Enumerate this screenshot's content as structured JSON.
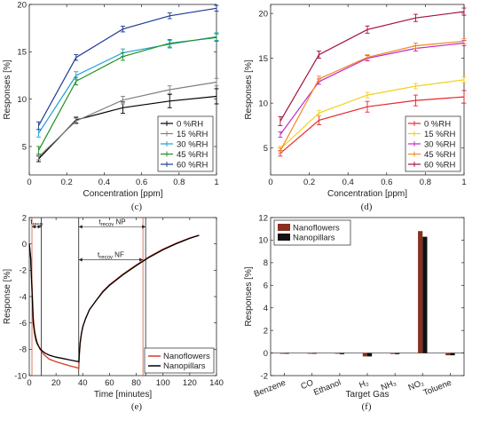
{
  "chart_data": [
    {
      "id": "c",
      "panel_label": "(c)",
      "type": "line",
      "error_bars": true,
      "xlabel": "Concentration [ppm]",
      "ylabel": "Responses [%]",
      "xlim": [
        0,
        1
      ],
      "ylim": [
        2,
        20
      ],
      "xticks": [
        0,
        0.2,
        0.4,
        0.6,
        0.8,
        1
      ],
      "xtick_labels": [
        "0",
        "0.2",
        "0.4",
        "0.6",
        "0.8",
        "1"
      ],
      "yticks": [
        5,
        10,
        15,
        20
      ],
      "ytick_labels": [
        "5",
        "10",
        "15",
        "20"
      ],
      "grid": false,
      "legend_position": "bottom-right",
      "x": [
        0.05,
        0.25,
        0.5,
        0.75,
        1
      ],
      "series": [
        {
          "name": "0 %RH",
          "color": "#000000",
          "values": [
            3.7,
            7.8,
            9.1,
            9.8,
            10.3
          ],
          "err": [
            0.3,
            0.3,
            0.6,
            0.7,
            0.8
          ]
        },
        {
          "name": "15 %RH",
          "color": "#808080",
          "values": [
            3.9,
            7.7,
            9.9,
            11.0,
            11.8
          ],
          "err": [
            0.3,
            0.3,
            0.4,
            0.4,
            0.4
          ]
        },
        {
          "name": "30 %RH",
          "color": "#1f9fd6",
          "values": [
            6.4,
            12.5,
            14.9,
            15.8,
            16.6
          ],
          "err": [
            0.4,
            0.4,
            0.4,
            0.4,
            0.4
          ]
        },
        {
          "name": "45 %RH",
          "color": "#1f8f1f",
          "values": [
            4.6,
            11.9,
            14.5,
            15.9,
            16.5
          ],
          "err": [
            0.4,
            0.4,
            0.4,
            0.4,
            0.4
          ]
        },
        {
          "name": "60 %RH",
          "color": "#1f3a93",
          "values": [
            7.2,
            14.4,
            17.4,
            18.8,
            19.6
          ],
          "err": [
            0.4,
            0.3,
            0.3,
            0.3,
            0.3
          ]
        }
      ]
    },
    {
      "id": "d",
      "panel_label": "(d)",
      "type": "line",
      "error_bars": true,
      "xlabel": "Concentration [ppm]",
      "ylabel": "Responses [%]",
      "xlim": [
        0,
        1
      ],
      "ylim": [
        2,
        21
      ],
      "xticks": [
        0,
        0.2,
        0.4,
        0.6,
        0.8,
        1
      ],
      "xtick_labels": [
        "0",
        "0.2",
        "0.4",
        "0.6",
        "0.8",
        "1"
      ],
      "yticks": [
        5,
        10,
        15,
        20
      ],
      "ytick_labels": [
        "5",
        "10",
        "15",
        "20"
      ],
      "grid": false,
      "legend_position": "bottom-right",
      "x": [
        0.05,
        0.25,
        0.5,
        0.75,
        1
      ],
      "series": [
        {
          "name": "0 %RH",
          "color": "#e8262c",
          "values": [
            4.4,
            8.1,
            9.6,
            10.3,
            10.7
          ],
          "err": [
            0.3,
            0.5,
            0.6,
            0.6,
            0.7
          ]
        },
        {
          "name": "15 %RH",
          "color": "#f2d11c",
          "values": [
            4.9,
            8.9,
            10.9,
            11.9,
            12.6
          ],
          "err": [
            0.3,
            0.3,
            0.3,
            0.3,
            0.3
          ]
        },
        {
          "name": "30 %RH",
          "color": "#c22bc9",
          "values": [
            6.5,
            12.4,
            15.0,
            16.1,
            16.7
          ],
          "err": [
            0.3,
            0.3,
            0.3,
            0.3,
            0.3
          ]
        },
        {
          "name": "45 %RH",
          "color": "#f08a24",
          "values": [
            4.7,
            12.7,
            15.1,
            16.4,
            16.9
          ],
          "err": [
            0.3,
            0.3,
            0.3,
            0.3,
            0.3
          ]
        },
        {
          "name": "60 %RH",
          "color": "#a1123a",
          "values": [
            8.0,
            15.4,
            18.2,
            19.5,
            20.2
          ],
          "err": [
            0.5,
            0.4,
            0.4,
            0.4,
            0.4
          ]
        }
      ]
    },
    {
      "id": "e",
      "panel_label": "(e)",
      "type": "line",
      "xlabel": "Time [minutes]",
      "ylabel": "Response [%]",
      "xlim": [
        0,
        140
      ],
      "ylim": [
        -10,
        2
      ],
      "xticks": [
        0,
        20,
        40,
        60,
        80,
        100,
        120,
        140
      ],
      "xtick_labels": [
        "0",
        "20",
        "40",
        "60",
        "80",
        "100",
        "120",
        "140"
      ],
      "yticks": [
        -10,
        -8,
        -6,
        -4,
        -2,
        0,
        2
      ],
      "ytick_labels": [
        "-10",
        "-8",
        "-6",
        "-4",
        "-2",
        "0",
        "2"
      ],
      "grid": false,
      "legend_position": "bottom-right",
      "annotations": [
        {
          "kind": "span",
          "label_main": "t",
          "label_sub": "resp",
          "x1": 2,
          "x2": 9,
          "y": 1.3
        },
        {
          "kind": "span",
          "label_main": "t",
          "label_sub": "recov",
          "label_suffix": " NP",
          "x1": 37,
          "x2": 87,
          "y": 1.3
        },
        {
          "kind": "span",
          "label_main": "t",
          "label_sub": "recov",
          "label_suffix": " NF",
          "x1": 37,
          "x2": 85,
          "y": -1.2
        }
      ],
      "vlines": [
        {
          "x": 2,
          "color": "#d23c28"
        },
        {
          "x": 9,
          "color": "#000000"
        },
        {
          "x": 37,
          "color": "#000000"
        },
        {
          "x": 85,
          "color": "#d23c28"
        },
        {
          "x": 87,
          "color": "#000000"
        }
      ],
      "series": [
        {
          "name": "Nanoflowers",
          "color": "#d23c28",
          "x": [
            0,
            1,
            2,
            3,
            4,
            5,
            6,
            8,
            10,
            12,
            15,
            20,
            25,
            30,
            35,
            37,
            37.5,
            38,
            39,
            40,
            42,
            45,
            50,
            55,
            60,
            70,
            80,
            90,
            100,
            110,
            120,
            127
          ],
          "y": [
            0,
            -1.0,
            -3.0,
            -5.6,
            -6.6,
            -7.1,
            -7.5,
            -8.0,
            -8.3,
            -8.5,
            -8.75,
            -8.95,
            -9.1,
            -9.25,
            -9.38,
            -9.45,
            -8.4,
            -7.6,
            -6.8,
            -6.3,
            -5.7,
            -5.0,
            -4.3,
            -3.6,
            -3.1,
            -2.3,
            -1.6,
            -0.95,
            -0.4,
            0.05,
            0.45,
            0.65
          ]
        },
        {
          "name": "Nanopillars",
          "color": "#000000",
          "x": [
            0,
            1,
            2,
            3,
            4,
            5,
            6,
            8,
            10,
            12,
            15,
            20,
            25,
            30,
            35,
            37,
            37.5,
            38,
            39,
            40,
            42,
            45,
            50,
            55,
            60,
            70,
            80,
            90,
            100,
            110,
            120,
            127
          ],
          "y": [
            0,
            -1.0,
            -3.5,
            -6.0,
            -6.8,
            -7.3,
            -7.6,
            -7.95,
            -8.15,
            -8.3,
            -8.45,
            -8.6,
            -8.7,
            -8.8,
            -8.9,
            -8.95,
            -8.2,
            -7.5,
            -6.8,
            -6.3,
            -5.7,
            -5.0,
            -4.3,
            -3.65,
            -3.15,
            -2.35,
            -1.65,
            -1.0,
            -0.45,
            0.02,
            0.42,
            0.65
          ]
        }
      ]
    },
    {
      "id": "f",
      "panel_label": "(f)",
      "type": "bar",
      "xlabel": "Target Gas",
      "ylabel": "Responses [%]",
      "ylim": [
        -2,
        12
      ],
      "yticks": [
        -2,
        0,
        2,
        4,
        6,
        8,
        10,
        12
      ],
      "ytick_labels": [
        "-2",
        "0",
        "2",
        "4",
        "6",
        "8",
        "10",
        "12"
      ],
      "grid": false,
      "legend_position": "top-left",
      "categories": [
        "Benzene",
        "CO",
        "Ethanol",
        "H₂",
        "NH₃",
        "NO₂",
        "Toluene"
      ],
      "series": [
        {
          "name": "Nanoflowers",
          "color": "#8b2f1e",
          "values": [
            -0.05,
            -0.05,
            -0.05,
            -0.3,
            -0.08,
            10.8,
            -0.2
          ]
        },
        {
          "name": "Nanopillars",
          "color": "#111111",
          "values": [
            -0.05,
            -0.05,
            -0.1,
            -0.3,
            -0.1,
            10.3,
            -0.2
          ]
        }
      ]
    }
  ]
}
